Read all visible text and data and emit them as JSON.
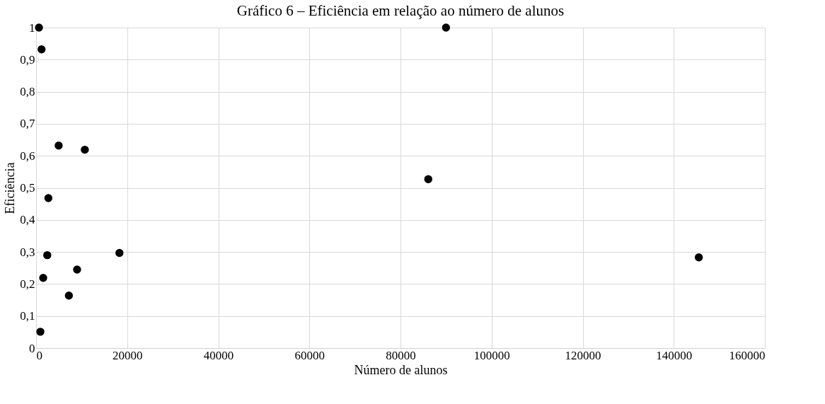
{
  "chart_data": {
    "type": "scatter",
    "title": "Gráfico 6 – Eficiência em relação ao número de alunos",
    "xlabel": "Número de alunos",
    "ylabel": "Eficiência",
    "x": [
      630,
      1200,
      4960,
      10700,
      2700,
      2450,
      18300,
      9000,
      1560,
      7200,
      940,
      90000,
      86100,
      145500
    ],
    "series": [
      {
        "color": "#000000",
        "values": [
          1,
          0.932,
          0.632,
          0.619,
          0.468,
          0.29,
          0.297,
          0.245,
          0.219,
          0.164,
          0.051,
          1,
          0.527,
          0.283
        ]
      }
    ],
    "xlim": [
      0,
      160000
    ],
    "xticks": [
      0,
      20000,
      40000,
      60000,
      80000,
      100000,
      120000,
      140000,
      160000
    ],
    "ylim": [
      0,
      1
    ],
    "yticks": [
      0,
      {
        "value": 0.1,
        "label": "0,1"
      },
      {
        "value": 0.2,
        "label": "0,2"
      },
      {
        "value": 0.3,
        "label": "0,3"
      },
      {
        "value": 0.4,
        "label": "0,4"
      },
      {
        "value": 0.5,
        "label": "0,5"
      },
      {
        "value": 0.6,
        "label": "0,6"
      },
      {
        "value": 0.7,
        "label": "0,7"
      },
      {
        "value": 0.8,
        "label": "0,8"
      },
      {
        "value": 0.9,
        "label": "0,9"
      },
      1
    ],
    "grid": true,
    "marker": "circle"
  }
}
